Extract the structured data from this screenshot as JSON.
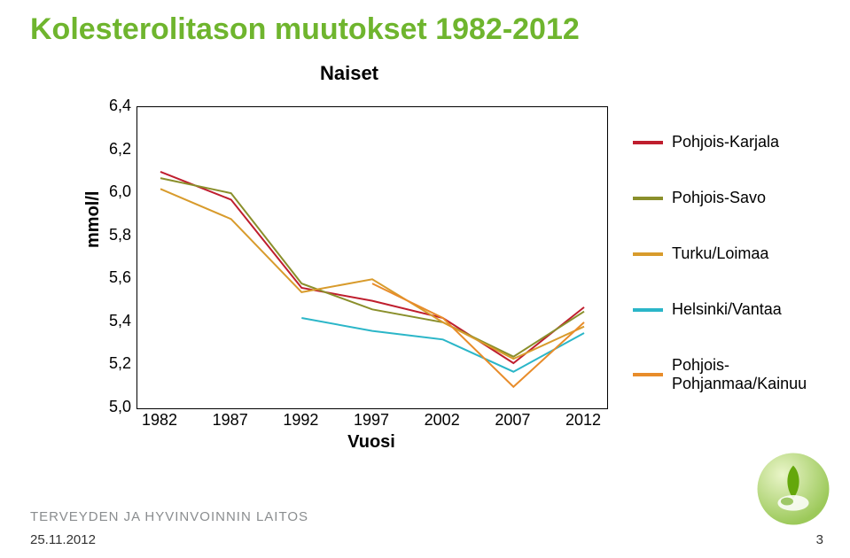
{
  "title": "Kolesterolitason muutokset 1982-2012",
  "chart": {
    "type": "line",
    "subtitle": "Naiset",
    "ylabel": "mmol/l",
    "xlabel": "Vuosi",
    "ylim": [
      5.0,
      6.4
    ],
    "ytick_step": 0.2,
    "yticks_labels": [
      "5,0",
      "5,2",
      "5,4",
      "5,6",
      "5,8",
      "6,0",
      "6,2",
      "6,4"
    ],
    "x_categories": [
      "1982",
      "1987",
      "1992",
      "1997",
      "2002",
      "2007",
      "2012"
    ],
    "background_color": "#ffffff",
    "grid": false,
    "border_color": "#000000",
    "line_width": 2,
    "series": [
      {
        "name": "Pohjois-Karjala",
        "color": "#bf1e2e",
        "values": [
          6.1,
          5.97,
          5.56,
          5.5,
          5.42,
          5.21,
          5.47
        ]
      },
      {
        "name": "Pohjois-Savo",
        "color": "#8a8f2b",
        "values": [
          6.07,
          6.0,
          5.58,
          5.46,
          5.4,
          5.24,
          5.45
        ]
      },
      {
        "name": "Turku/Loimaa",
        "color": "#d89b2c",
        "values": [
          6.02,
          5.88,
          5.54,
          5.6,
          5.4,
          5.23,
          5.38
        ]
      },
      {
        "name": "Helsinki/Vantaa",
        "color": "#2bb6c8",
        "values": [
          null,
          null,
          5.42,
          5.36,
          5.32,
          5.17,
          5.35
        ]
      },
      {
        "name": "Pohjois-Pohjanmaa/Kainuu",
        "color": "#e88c2a",
        "values": [
          null,
          null,
          null,
          5.58,
          5.42,
          5.1,
          5.4
        ]
      }
    ]
  },
  "footer": {
    "brand": "TERVEYDEN JA HYVINVOINNIN LAITOS",
    "date": "25.11.2012",
    "page": "3"
  },
  "ball_colors": {
    "outer": "#d7e9a7",
    "leaf": "#64a70b",
    "petal": "#ffffff"
  }
}
